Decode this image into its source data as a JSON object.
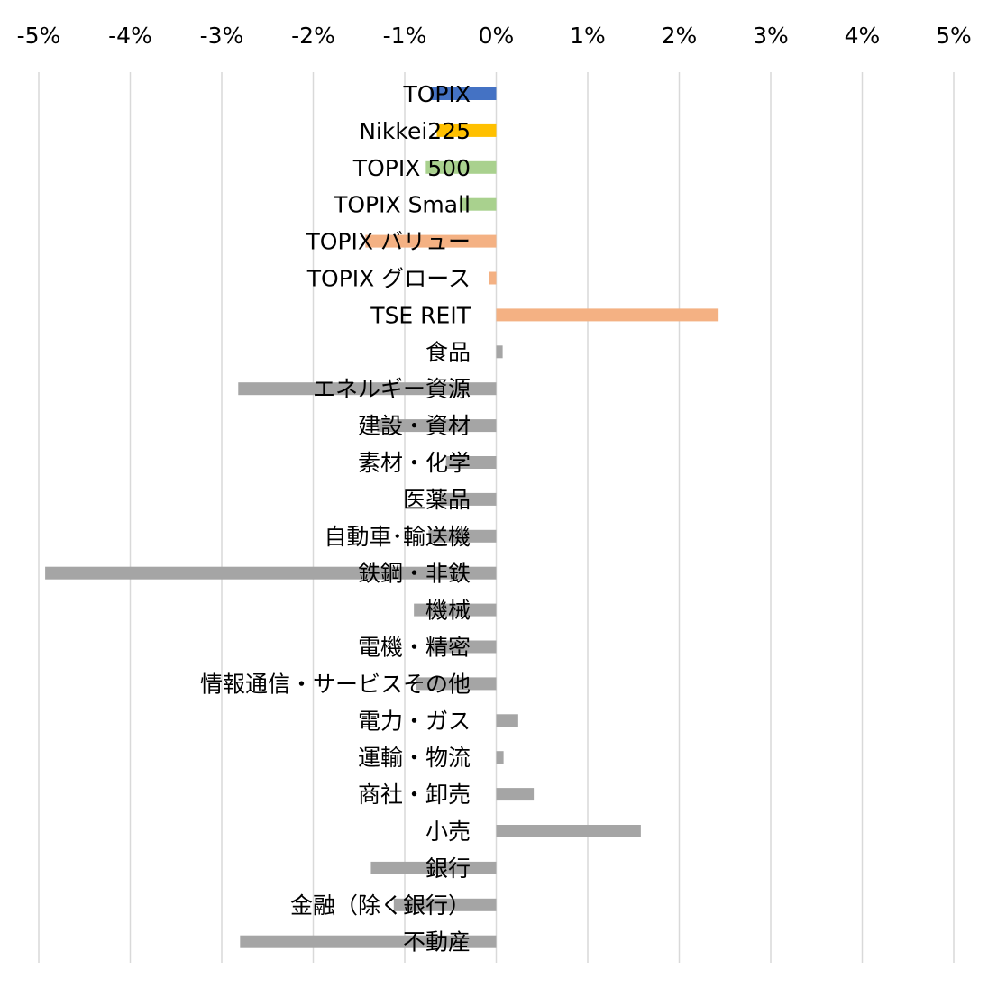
{
  "chart_data": {
    "type": "bar",
    "orientation": "horizontal",
    "x_axis_position": "top",
    "xlim": [
      -5,
      5
    ],
    "xticks": [
      -5,
      -4,
      -3,
      -2,
      -1,
      0,
      1,
      2,
      3,
      4,
      5
    ],
    "xtick_labels": [
      "-5%",
      "-4%",
      "-3%",
      "-2%",
      "-1%",
      "0%",
      "1%",
      "2%",
      "3%",
      "4%",
      "5%"
    ],
    "grid": true,
    "categories": [
      "TOPIX",
      "Nikkei225",
      "TOPIX 500",
      "TOPIX Small",
      "TOPIX バリュー",
      "TOPIX グロース",
      "TSE REIT",
      "食品",
      "エネルギー資源",
      "建設・資材",
      "素材・化学",
      "医薬品",
      "自動車･輸送機",
      "鉄鋼・非鉄",
      "機械",
      "電機・精密",
      "情報通信・サービスその他",
      "電力・ガス",
      "運輸・物流",
      "商社・卸売",
      "小売",
      "銀行",
      "金融（除く銀行）",
      "不動産"
    ],
    "values": [
      -0.72,
      -0.65,
      -0.77,
      -0.4,
      -1.43,
      -0.08,
      2.43,
      0.07,
      -2.82,
      -1.3,
      -0.55,
      -0.62,
      -0.74,
      -4.93,
      -0.9,
      -0.7,
      -0.88,
      0.24,
      0.08,
      0.41,
      1.58,
      -1.37,
      -1.12,
      -2.8
    ],
    "bar_colors": [
      "#4472c4",
      "#ffc000",
      "#a9d18e",
      "#a9d18e",
      "#f4b183",
      "#f4b183",
      "#f4b183",
      "#a5a5a5",
      "#a5a5a5",
      "#a5a5a5",
      "#a5a5a5",
      "#a5a5a5",
      "#a5a5a5",
      "#a5a5a5",
      "#a5a5a5",
      "#a5a5a5",
      "#a5a5a5",
      "#a5a5a5",
      "#a5a5a5",
      "#a5a5a5",
      "#a5a5a5",
      "#a5a5a5",
      "#a5a5a5",
      "#a5a5a5"
    ]
  }
}
